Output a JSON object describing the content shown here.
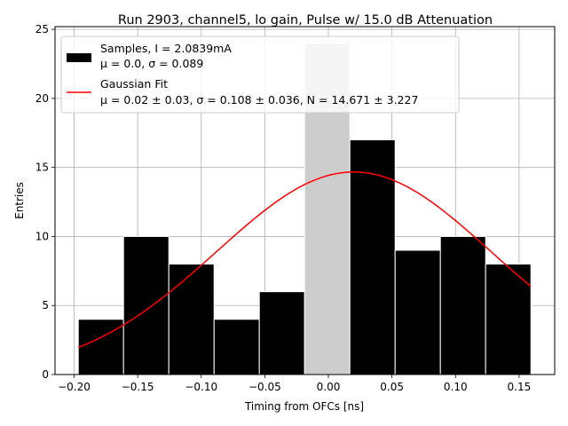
{
  "chart_data": {
    "type": "bar",
    "title": "Run 2903, channel5, lo gain, Pulse w/ 15.0 dB Attenuation",
    "xlabel": "Timing from OFCs [ns]",
    "ylabel": "Entries",
    "xlim": [
      -0.215,
      0.178
    ],
    "ylim": [
      0,
      25.2
    ],
    "grid": true,
    "xticks": [
      -0.2,
      -0.15,
      -0.1,
      -0.05,
      0.0,
      0.05,
      0.1,
      0.15
    ],
    "xtick_labels": [
      "−0.20",
      "−0.15",
      "−0.10",
      "−0.05",
      "0.00",
      "0.05",
      "0.10",
      "0.15"
    ],
    "yticks": [
      0,
      5,
      10,
      15,
      20,
      25
    ],
    "ytick_labels": [
      "0",
      "5",
      "10",
      "15",
      "20",
      "25"
    ],
    "bin_edges": [
      -0.1967,
      -0.1611,
      -0.1255,
      -0.0899,
      -0.0543,
      -0.0187,
      0.0169,
      0.0525,
      0.0881,
      0.1237,
      0.1593
    ],
    "counts": [
      4,
      10,
      8,
      4,
      6,
      24,
      17,
      9,
      10,
      8
    ],
    "bar_colors": [
      "#000000",
      "#000000",
      "#000000",
      "#000000",
      "#000000",
      "#cccccc",
      "#000000",
      "#000000",
      "#000000",
      "#000000"
    ],
    "fit": {
      "type": "gaussian",
      "mu": 0.02,
      "sigma": 0.108,
      "N": 14.671,
      "x_range": [
        -0.1967,
        0.1593
      ],
      "color": "#ff0000"
    },
    "legend": {
      "placement": "upper-left",
      "entries": [
        {
          "line1": "Samples, I = 2.0839mA",
          "line2": "μ = 0.0, σ = 0.089",
          "marker": "patch",
          "color": "#000000"
        },
        {
          "line1": "Gaussian Fit",
          "line2": "μ = 0.02 ± 0.03, σ = 0.108 ± 0.036, N = 14.671 ± 3.227",
          "marker": "line",
          "color": "#ff0000"
        }
      ]
    }
  }
}
